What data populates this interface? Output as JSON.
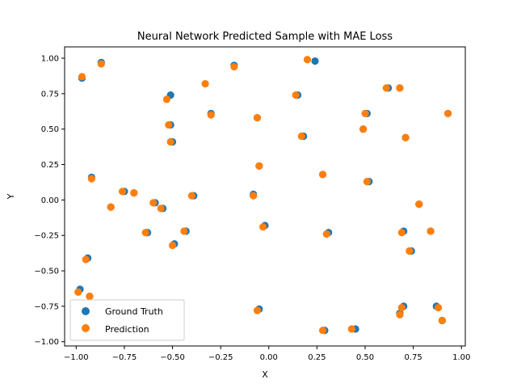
{
  "chart_data": {
    "type": "scatter",
    "title": "Neural Network Predicted Sample with MAE Loss",
    "xlabel": "X",
    "ylabel": "Y",
    "xlim": [
      -1.06,
      1.02
    ],
    "ylim": [
      -1.03,
      1.08
    ],
    "xticks": [
      -1.0,
      -0.75,
      -0.5,
      -0.25,
      0.0,
      0.25,
      0.5,
      0.75,
      1.0
    ],
    "yticks": [
      -1.0,
      -0.75,
      -0.5,
      -0.25,
      0.0,
      0.25,
      0.5,
      0.75,
      1.0
    ],
    "xtick_labels": [
      "−1.00",
      "−0.75",
      "−0.50",
      "−0.25",
      "0.00",
      "0.25",
      "0.50",
      "0.75",
      "1.00"
    ],
    "ytick_labels": [
      "−1.00",
      "−0.75",
      "−0.50",
      "−0.25",
      "0.00",
      "0.25",
      "0.50",
      "0.75",
      "1.00"
    ],
    "grid": false,
    "legend_position": "lower-left",
    "series": [
      {
        "name": "Ground Truth",
        "color": "#1f77b4",
        "points": [
          [
            -0.97,
            0.86
          ],
          [
            -0.87,
            0.97
          ],
          [
            -0.18,
            0.95
          ],
          [
            0.24,
            0.98
          ],
          [
            -0.51,
            0.74
          ],
          [
            0.62,
            0.79
          ],
          [
            0.68,
            0.79
          ],
          [
            -0.3,
            0.61
          ],
          [
            -0.06,
            0.58
          ],
          [
            0.51,
            0.61
          ],
          [
            0.15,
            0.74
          ],
          [
            0.93,
            0.61
          ],
          [
            -0.51,
            0.53
          ],
          [
            0.49,
            0.5
          ],
          [
            0.18,
            0.45
          ],
          [
            -0.5,
            0.41
          ],
          [
            0.71,
            0.44
          ],
          [
            -0.92,
            0.16
          ],
          [
            -0.05,
            0.24
          ],
          [
            0.28,
            0.18
          ],
          [
            0.52,
            0.13
          ],
          [
            -0.75,
            0.06
          ],
          [
            -0.7,
            0.05
          ],
          [
            -0.39,
            0.03
          ],
          [
            -0.08,
            0.04
          ],
          [
            0.78,
            -0.03
          ],
          [
            -0.59,
            -0.02
          ],
          [
            -0.55,
            -0.06
          ],
          [
            -0.82,
            -0.05
          ],
          [
            -0.02,
            -0.18
          ],
          [
            -0.63,
            -0.23
          ],
          [
            -0.43,
            -0.22
          ],
          [
            0.31,
            -0.23
          ],
          [
            0.7,
            -0.22
          ],
          [
            0.84,
            -0.22
          ],
          [
            -0.49,
            -0.31
          ],
          [
            0.74,
            -0.36
          ],
          [
            -0.94,
            -0.41
          ],
          [
            -0.98,
            -0.63
          ],
          [
            -0.93,
            -0.68
          ],
          [
            0.7,
            -0.75
          ],
          [
            0.87,
            -0.75
          ],
          [
            -0.05,
            -0.77
          ],
          [
            0.68,
            -0.8
          ],
          [
            0.9,
            -0.85
          ],
          [
            0.29,
            -0.92
          ],
          [
            0.45,
            -0.91
          ]
        ]
      },
      {
        "name": "Prediction",
        "color": "#ff7f0e",
        "points": [
          [
            -0.97,
            0.87
          ],
          [
            -0.87,
            0.96
          ],
          [
            -0.18,
            0.94
          ],
          [
            0.2,
            0.99
          ],
          [
            -0.53,
            0.71
          ],
          [
            0.61,
            0.79
          ],
          [
            0.68,
            0.79
          ],
          [
            -0.33,
            0.82
          ],
          [
            -0.3,
            0.6
          ],
          [
            -0.06,
            0.58
          ],
          [
            0.5,
            0.61
          ],
          [
            0.14,
            0.74
          ],
          [
            0.93,
            0.61
          ],
          [
            -0.52,
            0.53
          ],
          [
            0.49,
            0.5
          ],
          [
            0.17,
            0.45
          ],
          [
            -0.51,
            0.41
          ],
          [
            0.71,
            0.44
          ],
          [
            -0.92,
            0.15
          ],
          [
            -0.05,
            0.24
          ],
          [
            0.28,
            0.18
          ],
          [
            0.51,
            0.13
          ],
          [
            -0.76,
            0.06
          ],
          [
            -0.7,
            0.05
          ],
          [
            -0.4,
            0.03
          ],
          [
            -0.08,
            0.03
          ],
          [
            0.78,
            -0.03
          ],
          [
            -0.6,
            -0.02
          ],
          [
            -0.56,
            -0.06
          ],
          [
            -0.82,
            -0.05
          ],
          [
            -0.03,
            -0.19
          ],
          [
            -0.64,
            -0.23
          ],
          [
            -0.44,
            -0.22
          ],
          [
            0.3,
            -0.24
          ],
          [
            0.69,
            -0.23
          ],
          [
            0.84,
            -0.22
          ],
          [
            -0.5,
            -0.32
          ],
          [
            0.73,
            -0.36
          ],
          [
            -0.95,
            -0.42
          ],
          [
            -0.99,
            -0.65
          ],
          [
            -0.93,
            -0.68
          ],
          [
            0.69,
            -0.76
          ],
          [
            0.88,
            -0.76
          ],
          [
            -0.06,
            -0.78
          ],
          [
            0.68,
            -0.81
          ],
          [
            0.9,
            -0.85
          ],
          [
            0.28,
            -0.92
          ],
          [
            0.43,
            -0.91
          ]
        ]
      }
    ]
  }
}
